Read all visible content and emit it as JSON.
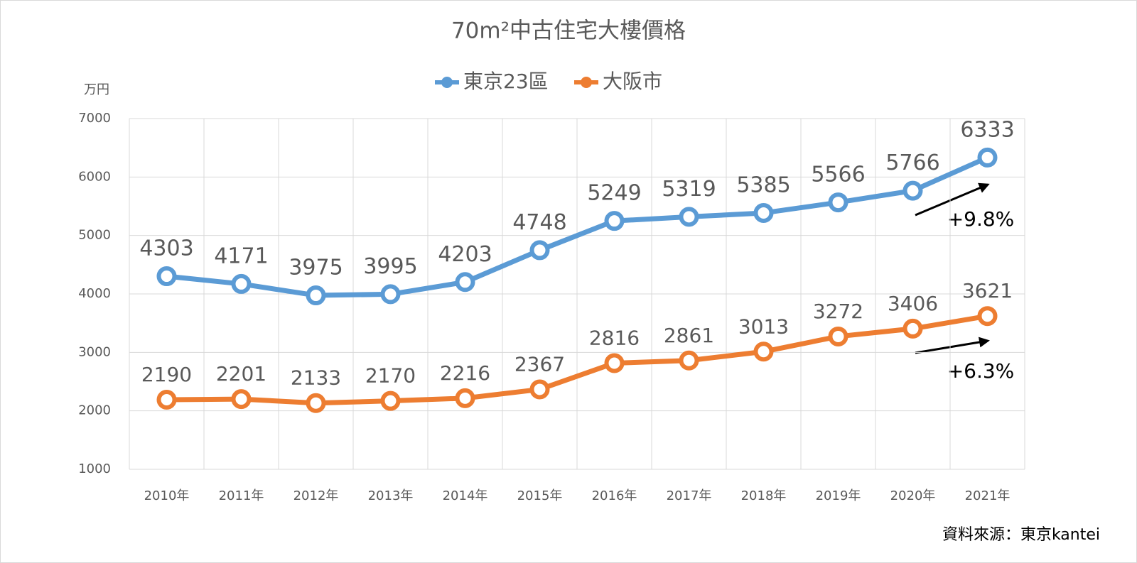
{
  "chart_data": {
    "type": "line",
    "title": "70m²中古住宅大樓價格",
    "y_label": "万円",
    "categories": [
      "2010年",
      "2011年",
      "2012年",
      "2013年",
      "2014年",
      "2015年",
      "2016年",
      "2017年",
      "2018年",
      "2019年",
      "2020年",
      "2021年"
    ],
    "series": [
      {
        "name": "東京23區",
        "color": "#5b9bd5",
        "values": [
          4303,
          4171,
          3975,
          3995,
          4203,
          4748,
          5249,
          5319,
          5385,
          5566,
          5766,
          6333
        ]
      },
      {
        "name": "大阪市",
        "color": "#ed7d31",
        "values": [
          2190,
          2201,
          2133,
          2170,
          2216,
          2367,
          2816,
          2861,
          3013,
          3272,
          3406,
          3621
        ]
      }
    ],
    "ylim": [
      1000,
      7000
    ],
    "yticks": [
      1000,
      2000,
      3000,
      4000,
      5000,
      6000,
      7000
    ],
    "grid": true,
    "annotations": [
      "+9.8%",
      "+6.3%"
    ],
    "source": "資料來源：東京kantei"
  }
}
